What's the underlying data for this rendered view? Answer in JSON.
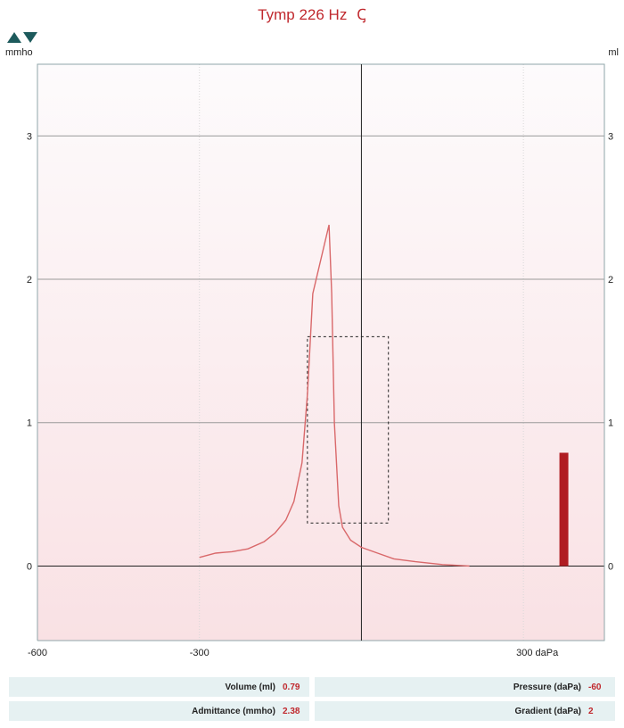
{
  "header": {
    "title": "Tymp 226 Hz",
    "ear_symbol": "Ꞔ"
  },
  "axes": {
    "left_unit": "mmho",
    "right_unit": "ml"
  },
  "chart_data": {
    "type": "line",
    "x_range": [
      -600,
      450
    ],
    "y_range": [
      -0.52,
      3.5
    ],
    "x_ticks": [
      {
        "value": -600,
        "label": "-600"
      },
      {
        "value": -300,
        "label": "-300"
      },
      {
        "value": 300,
        "label": "300 daPa"
      }
    ],
    "y_ticks": [
      {
        "value": 0,
        "label": "0"
      },
      {
        "value": 1,
        "label": "1"
      },
      {
        "value": 2,
        "label": "2"
      },
      {
        "value": 3,
        "label": "3"
      }
    ],
    "series": [
      {
        "color": "#d9686a",
        "points": [
          [
            -300,
            0.06
          ],
          [
            -270,
            0.09
          ],
          [
            -240,
            0.1
          ],
          [
            -210,
            0.12
          ],
          [
            -180,
            0.17
          ],
          [
            -160,
            0.23
          ],
          [
            -140,
            0.32
          ],
          [
            -125,
            0.45
          ],
          [
            -110,
            0.72
          ],
          [
            -100,
            1.2
          ],
          [
            -90,
            1.9
          ],
          [
            -60,
            2.38
          ],
          [
            -55,
            1.9
          ],
          [
            -50,
            1.0
          ],
          [
            -42,
            0.42
          ],
          [
            -35,
            0.27
          ],
          [
            -20,
            0.18
          ],
          [
            0,
            0.13
          ],
          [
            30,
            0.09
          ],
          [
            60,
            0.05
          ],
          [
            100,
            0.03
          ],
          [
            150,
            0.01
          ],
          [
            200,
            0.0
          ]
        ]
      }
    ],
    "tolerance_box": {
      "x_min": -100,
      "x_max": 50,
      "y_min": 0.3,
      "y_max": 1.6
    },
    "volume_bar": {
      "x": 375,
      "value": 0.79,
      "color": "#b01c22"
    },
    "background_gradient": [
      "#fdfbfc",
      "#f9e1e4"
    ]
  },
  "measurements": [
    [
      {
        "label": "Volume (ml)",
        "value": "0.79"
      },
      {
        "label": "Pressure (daPa)",
        "value": "-60"
      }
    ],
    [
      {
        "label": "Admittance (mmho)",
        "value": "2.38"
      },
      {
        "label": "Gradient (daPa)",
        "value": "2"
      }
    ]
  ]
}
